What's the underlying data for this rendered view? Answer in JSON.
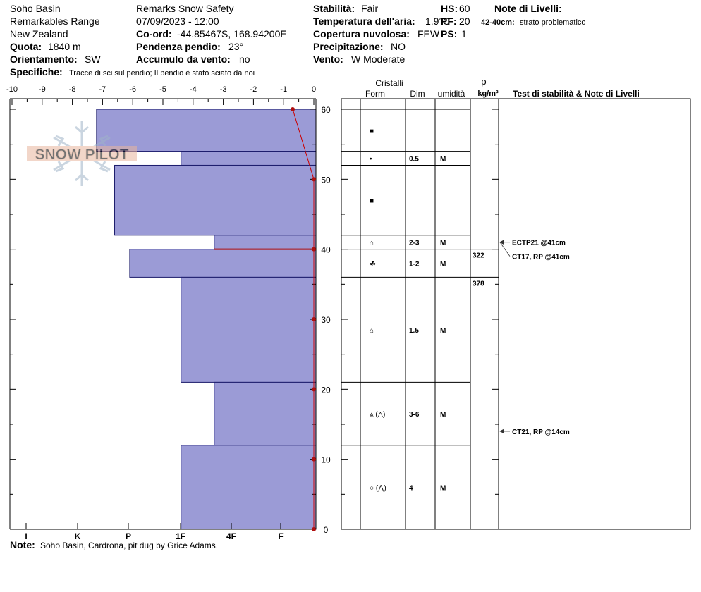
{
  "header": {
    "location": "Soho Basin",
    "range": "Remarkables Range",
    "country": "New Zealand",
    "quota_label": "Quota:",
    "quota_value": "1840 m",
    "aspect_label": "Orientamento:",
    "aspect_value": "SW",
    "specifics_label": "Specifiche:",
    "specifics_value": "Tracce di sci sul pendio;  Il pendio è stato sciato da noi",
    "observer": "Remarks Snow Safety",
    "datetime": "07/09/2023 - 12:00",
    "coord_label": "Co-ord:",
    "coord_value": "-44.85467S, 168.94200E",
    "slope_label": "Pendenza pendio:",
    "slope_value": "23°",
    "wind_loading_label": "Accumulo da vento:",
    "wind_loading_value": "no",
    "stability_label": "Stabilità:",
    "stability_value": "Fair",
    "air_temp_label": "Temperatura dell'aria:",
    "air_temp_value": "1.9°C",
    "sky_label": "Copertura nuvolosa:",
    "sky_value": "FEW",
    "precip_label": "Precipitazione:",
    "precip_value": "NO",
    "wind_label": "Vento:",
    "wind_value": "W Moderate",
    "hs_label": "HS:",
    "hs_value": "60",
    "pf_label": "PF:",
    "pf_value": "20",
    "ps_label": "PS:",
    "ps_value": "1",
    "layer_notes_label": "Note di Livelli:",
    "layer_note_range": "42-40cm:",
    "layer_note_text": "strato problematico",
    "note_label": "Note:",
    "note_value": "Soho Basin, Cardrona, pit dug by Grice Adams.",
    "watermark": "SNOW PILOT"
  },
  "colors": {
    "hardness_fill": "#9b9bd6",
    "temp_line": "#cc0000",
    "marker": "#b01010",
    "grid": "#000000"
  },
  "table_headers": {
    "crystals": "Cristalli",
    "form": "Form",
    "size": "Dim",
    "moisture": "umidità",
    "rho": "ρ",
    "density_unit": "kg/m³",
    "tests": "Test di stabilità & Note di Livelli"
  },
  "chart_data": {
    "type": "bar",
    "title": "",
    "top_axis_ticks": [
      "-10",
      "-9",
      "-8",
      "-7",
      "-6",
      "-5",
      "-4",
      "-3",
      "-2",
      "-1",
      "0"
    ],
    "hardness_ticks": [
      "I",
      "K",
      "P",
      "1F",
      "4F",
      "F"
    ],
    "depth_ticks": [
      "0",
      "10",
      "20",
      "30",
      "40",
      "50",
      "60"
    ],
    "ylim": [
      0,
      60
    ],
    "temp_xlim": [
      -10,
      0
    ],
    "hardness_layers": [
      {
        "top": 60,
        "bottom": 54,
        "temp_extent": -7.2
      },
      {
        "top": 54,
        "bottom": 52,
        "temp_extent": -4.4
      },
      {
        "top": 52,
        "bottom": 42,
        "temp_extent": -6.6
      },
      {
        "top": 42,
        "bottom": 40,
        "temp_extent": -3.3
      },
      {
        "top": 40,
        "bottom": 36,
        "temp_extent": -6.1
      },
      {
        "top": 36,
        "bottom": 21,
        "temp_extent": -4.4
      },
      {
        "top": 21,
        "bottom": 12,
        "temp_extent": -3.3
      },
      {
        "top": 12,
        "bottom": 0,
        "temp_extent": -4.4
      }
    ],
    "temperature_profile": [
      {
        "depth": 60,
        "temp": -0.7
      },
      {
        "depth": 50,
        "temp": 0
      },
      {
        "depth": 40,
        "temp": 0
      },
      {
        "depth": 30,
        "temp": 0
      },
      {
        "depth": 20,
        "temp": 0
      },
      {
        "depth": 10,
        "temp": 0
      },
      {
        "depth": 0,
        "temp": 0
      }
    ],
    "problem_layer_depth": 40,
    "layers_table": [
      {
        "top": 60,
        "bottom": 54,
        "form": "■",
        "size": "",
        "moisture": ""
      },
      {
        "top": 54,
        "bottom": 52,
        "form": "•",
        "size": "0.5",
        "moisture": "M"
      },
      {
        "top": 52,
        "bottom": 42,
        "form": "■",
        "size": "",
        "moisture": ""
      },
      {
        "top": 42,
        "bottom": 40,
        "form": "⌂",
        "size": "2-3",
        "moisture": "M"
      },
      {
        "top": 40,
        "bottom": 36,
        "form": "☘",
        "size": "1-2",
        "moisture": "M"
      },
      {
        "top": 36,
        "bottom": 21,
        "form": "⌂",
        "size": "1.5",
        "moisture": "M"
      },
      {
        "top": 21,
        "bottom": 12,
        "form": "⩓ (⋀)",
        "size": "3-6",
        "moisture": "M"
      },
      {
        "top": 12,
        "bottom": 0,
        "form": "○ (⋀)",
        "size": "4",
        "moisture": "M"
      }
    ],
    "densities": [
      {
        "depth": 40,
        "value": "322"
      },
      {
        "depth": 36,
        "value": "378"
      }
    ],
    "stability_tests": [
      {
        "depth": 41,
        "label": "ECTP21 @41cm",
        "text_depth": 41
      },
      {
        "depth": 41,
        "label": "CT17, RP @41cm",
        "text_depth": 39
      },
      {
        "depth": 14,
        "label": "CT21, RP @14cm",
        "text_depth": 14
      }
    ]
  }
}
